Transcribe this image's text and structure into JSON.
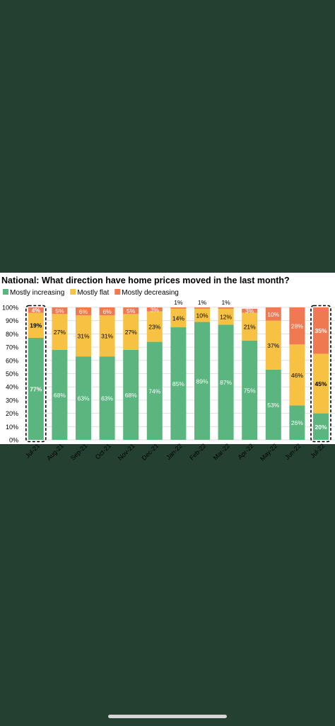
{
  "chart_data": {
    "type": "bar",
    "stacked": true,
    "title": "National: What direction have home prices moved in the last month?",
    "categories": [
      "Jul-21",
      "Aug-21",
      "Sep-21",
      "Oct-21",
      "Nov-21",
      "Dec-21",
      "Jan-22",
      "Feb-22",
      "Mar-22",
      "Apr-22",
      "May-22",
      "Jun-22",
      "Jul-22"
    ],
    "series": [
      {
        "name": "Mostly increasing",
        "color": "#5ab57e",
        "values": [
          77,
          68,
          63,
          63,
          68,
          74,
          85,
          89,
          87,
          75,
          53,
          26,
          20
        ]
      },
      {
        "name": "Mostly flat",
        "color": "#f7c244",
        "values": [
          19,
          27,
          31,
          31,
          27,
          23,
          14,
          10,
          12,
          21,
          37,
          46,
          45
        ]
      },
      {
        "name": "Mostly decreasing",
        "color": "#ef7a52",
        "values": [
          4,
          5,
          6,
          6,
          5,
          3,
          1,
          1,
          1,
          3,
          10,
          28,
          35
        ]
      }
    ],
    "ylim": [
      0,
      100
    ],
    "yticks": [
      "0%",
      "10%",
      "20%",
      "30%",
      "40%",
      "50%",
      "60%",
      "70%",
      "80%",
      "90%",
      "100%"
    ],
    "highlighted_categories": [
      "Jul-21",
      "Jul-22"
    ],
    "legend_position": "top-left",
    "grid": true
  },
  "ui": {
    "background_color": "#244030",
    "card_color": "#ffffff"
  }
}
